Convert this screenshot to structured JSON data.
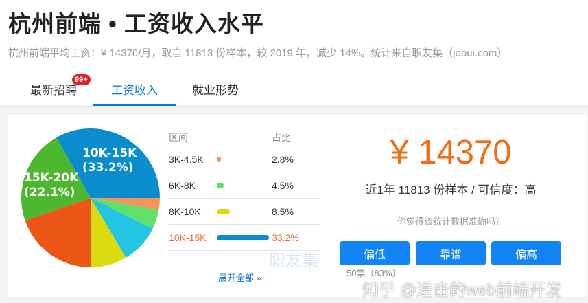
{
  "header": {
    "title": "杭州前端 • 工资收入水平",
    "subtitle": "杭州前端平均工资：¥ 14370/月，取自 11813 份样本，较 2019 年，减少 14%。统计来自职友集（jobui.com）"
  },
  "tabs": [
    {
      "label": "最新招聘",
      "badge": "99+"
    },
    {
      "label": "工资收入",
      "active": true
    },
    {
      "label": "就业形势"
    }
  ],
  "chart_data": {
    "type": "pie",
    "slices": [
      {
        "label": "3K-4.5K",
        "value": 2.8,
        "color": "#f7935a"
      },
      {
        "label": "6K-8K",
        "value": 4.5,
        "color": "#5fe06a"
      },
      {
        "label": "",
        "value": 9.2,
        "color": "#22c6e2"
      },
      {
        "label": "8K-10K",
        "value": 8.5,
        "color": "#dbdc0e"
      },
      {
        "label": "",
        "value": 19.7,
        "color": "#ec5718"
      },
      {
        "label": "15K-20K",
        "value": 22.1,
        "color": "#4db82f"
      },
      {
        "label": "10K-15K",
        "value": 33.2,
        "color": "#0a8cce"
      }
    ],
    "data_labels": [
      {
        "range": "10K-15K",
        "pct": "(33.2%)"
      },
      {
        "range": "15K-20K",
        "pct": "(22.1%)"
      }
    ]
  },
  "table": {
    "col_range": "区间",
    "col_share": "占比",
    "rows": [
      {
        "range": "3K-4.5K",
        "share": "2.8%",
        "value": 2.8,
        "color": "#f7935a"
      },
      {
        "range": "6K-8K",
        "share": "4.5%",
        "value": 4.5,
        "color": "#5fe06a"
      },
      {
        "range": "8K-10K",
        "share": "8.5%",
        "value": 8.5,
        "color": "#dbdc0e"
      },
      {
        "range": "10K-15K",
        "share": "33.2%",
        "value": 33.2,
        "color": "#0a8cce"
      }
    ],
    "expand": "展开全部 »"
  },
  "summary": {
    "price": "¥ 14370",
    "sample": "近1年 11813 份样本 / 可信度：高",
    "question": "你觉得该统计数据准确吗？",
    "buttons": [
      "偏低",
      "靠谱",
      "偏高"
    ],
    "votes": "50票（83%）"
  },
  "watermark": {
    "zhihu": "知乎 @进击的web前端开发",
    "jobui": "职友集"
  }
}
